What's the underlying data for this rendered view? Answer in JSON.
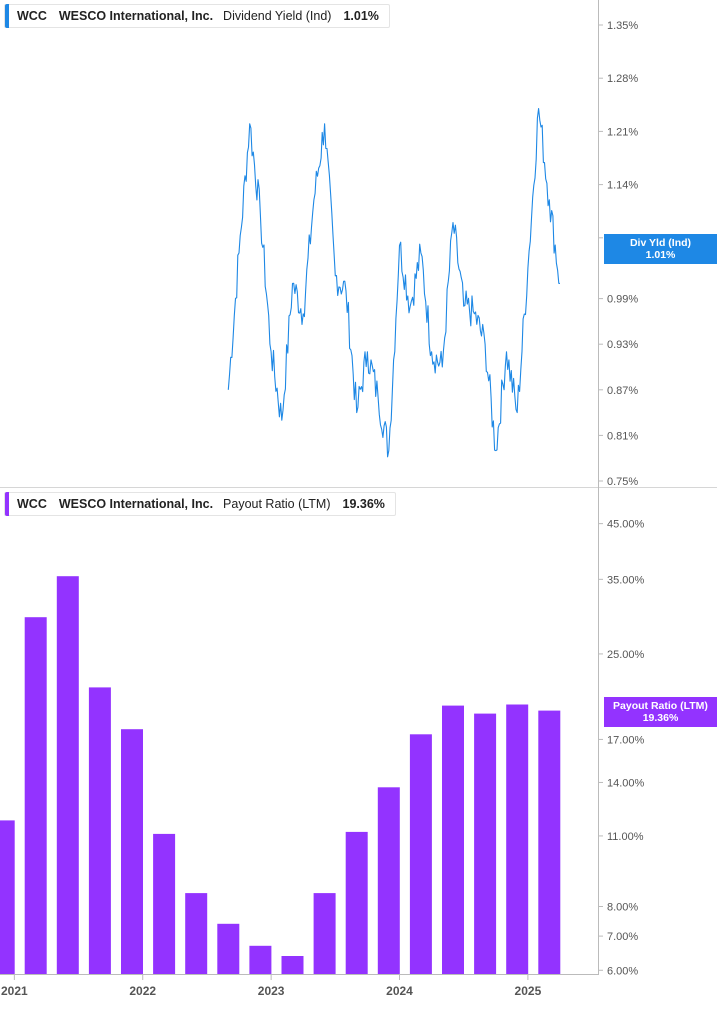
{
  "colors": {
    "line": "#1e88e5",
    "bar": "#9333ff",
    "axis": "#bbbbbb",
    "text": "#555555"
  },
  "top_panel": {
    "legend": {
      "ticker": "WCC",
      "company": "WESCO International, Inc.",
      "metric": "Dividend Yield (Ind)",
      "value": "1.01%"
    },
    "tag": {
      "title": "Div Yld (Ind)",
      "value": "1.01%"
    }
  },
  "bottom_panel": {
    "legend": {
      "ticker": "WCC",
      "company": "WESCO International, Inc.",
      "metric": "Payout Ratio (LTM)",
      "value": "19.36%"
    },
    "tag": {
      "title": "Payout Ratio (LTM)",
      "value": "19.36%"
    }
  },
  "chart_data": [
    {
      "type": "line",
      "series": [
        {
          "name": "Dividend Yield (Ind)",
          "x": [
            "2022-09",
            "2022-10",
            "2022-11",
            "2022-12",
            "2023-01",
            "2023-02",
            "2023-03",
            "2023-04",
            "2023-05",
            "2023-06",
            "2023-07",
            "2023-08",
            "2023-09",
            "2023-10",
            "2023-11",
            "2023-12",
            "2024-01",
            "2024-02",
            "2024-03",
            "2024-04",
            "2024-05",
            "2024-06",
            "2024-07",
            "2024-08",
            "2024-09",
            "2024-10",
            "2024-11",
            "2024-12",
            "2025-01",
            "2025-02",
            "2025-03",
            "2025-04"
          ],
          "values": [
            0.87,
            1.05,
            1.22,
            1.1,
            0.92,
            0.83,
            1.01,
            0.97,
            1.12,
            1.22,
            1.02,
            1.0,
            0.84,
            0.92,
            0.86,
            0.79,
            1.06,
            0.98,
            1.05,
            0.92,
            0.9,
            1.09,
            0.98,
            0.97,
            0.93,
            0.79,
            0.92,
            0.84,
            1.03,
            1.24,
            1.12,
            1.01
          ]
        }
      ],
      "yticks": [
        "0.75%",
        "0.81%",
        "0.87%",
        "0.93%",
        "0.99%",
        "1.07%",
        "1.14%",
        "1.21%",
        "1.28%",
        "1.35%"
      ],
      "ylim": [
        0.75,
        1.35
      ]
    },
    {
      "type": "bar",
      "scale": "log",
      "series": [
        {
          "name": "Payout Ratio (LTM)",
          "x": [
            "2020-12",
            "2021-03",
            "2021-06",
            "2021-09",
            "2021-12",
            "2022-03",
            "2022-06",
            "2022-09",
            "2022-12",
            "2023-03",
            "2023-06",
            "2023-09",
            "2023-12",
            "2024-03",
            "2024-06",
            "2024-09",
            "2024-12",
            "2025-03"
          ],
          "values": [
            11.8,
            29.5,
            35.5,
            21.5,
            17.8,
            11.1,
            8.5,
            7.4,
            6.7,
            6.4,
            8.5,
            11.2,
            13.7,
            17.4,
            19.8,
            19.1,
            19.9,
            19.36
          ]
        }
      ],
      "yticks": [
        "6.00%",
        "7.00%",
        "8.00%",
        "11.00%",
        "14.00%",
        "17.00%",
        "25.00%",
        "35.00%",
        "45.00%"
      ],
      "ylim": [
        5.9,
        47
      ],
      "xticks": [
        "2021",
        "2022",
        "2023",
        "2024",
        "2025"
      ]
    }
  ]
}
